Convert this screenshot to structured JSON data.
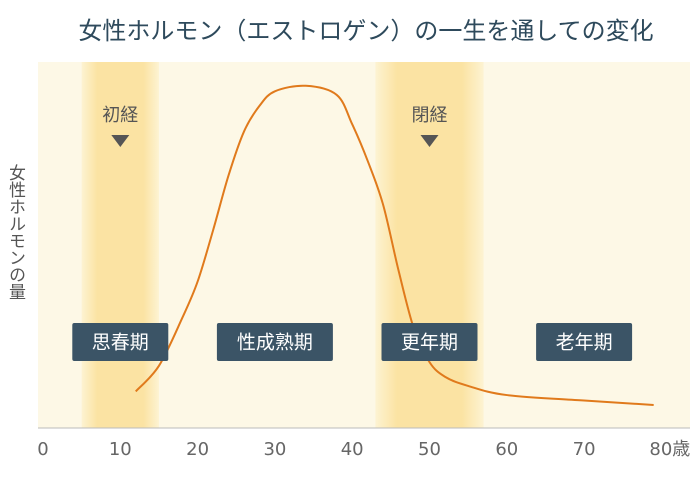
{
  "chart_data": {
    "type": "line",
    "title": "女性ホルモン（エストロゲン）の一生を通しての変化",
    "y_label": "女性ホルモンの量",
    "x": [
      12,
      15,
      18,
      20,
      22,
      24,
      26,
      28,
      30,
      34,
      38,
      40,
      42,
      44,
      46,
      48,
      50,
      52,
      55,
      60,
      70,
      79
    ],
    "series": [
      {
        "name": "エストロゲン",
        "color": "#e07a1c",
        "values": [
          10,
          17,
          30,
          40,
          54,
          69,
          81,
          88,
          92,
          93.5,
          91,
          83,
          73,
          61,
          43,
          27,
          18,
          14,
          11.5,
          9,
          7.5,
          6.3
        ]
      }
    ],
    "xlim": [
      0,
      84
    ],
    "ylim": [
      0,
      100
    ],
    "xticks": [
      0,
      10,
      20,
      30,
      40,
      50,
      60,
      70,
      {
        "value": 80,
        "label": "80歳"
      }
    ],
    "bands": [
      {
        "start": 5,
        "end": 15
      },
      {
        "start": 43,
        "end": 57
      }
    ],
    "annotations": [
      {
        "text": "初経",
        "x": 10
      },
      {
        "text": "閉経",
        "x": 50
      }
    ],
    "phases": [
      {
        "label": "思春期",
        "x": 10
      },
      {
        "label": "性成熟期",
        "x": 30
      },
      {
        "label": "更年期",
        "x": 50
      },
      {
        "label": "老年期",
        "x": 70
      }
    ]
  }
}
